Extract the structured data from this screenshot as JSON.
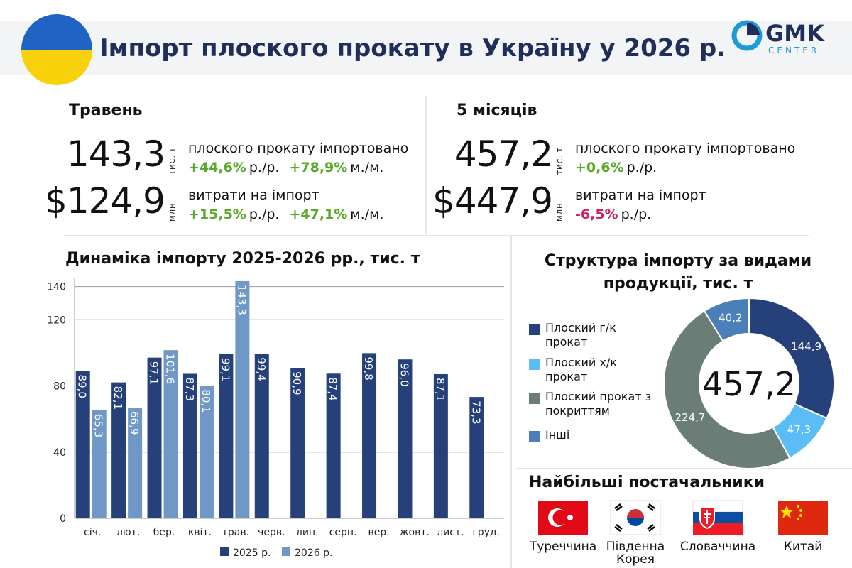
{
  "header": {
    "title": "Імпорт плоского прокату в Україну у 2026 р.",
    "logo_main": "GMK",
    "logo_sub": "CENTER"
  },
  "may": {
    "heading": "Травень",
    "rows": [
      {
        "value": "143,3",
        "unit": "тис. т",
        "desc": "плоского прокату імпортовано",
        "changes": [
          {
            "value": "+44,6%",
            "suffix": "р./р.",
            "color": "#5aa92b"
          },
          {
            "value": "+78,9%",
            "suffix": "м./м.",
            "color": "#5aa92b"
          }
        ]
      },
      {
        "value": "$124,9",
        "unit": "млн",
        "desc": "витрати на імпорт",
        "changes": [
          {
            "value": "+15,5%",
            "suffix": "р./р.",
            "color": "#5aa92b"
          },
          {
            "value": "+47,1%",
            "suffix": "м./м.",
            "color": "#5aa92b"
          }
        ]
      }
    ]
  },
  "five_months": {
    "heading": "5 місяців",
    "rows": [
      {
        "value": "457,2",
        "unit": "тис. т",
        "desc": "плоского прокату імпортовано",
        "changes": [
          {
            "value": "+0,6%",
            "suffix": "р./р.",
            "color": "#5aa92b"
          }
        ]
      },
      {
        "value": "$447,9",
        "unit": "млн",
        "desc": "витрати на імпорт",
        "changes": [
          {
            "value": "-6,5%",
            "suffix": "р./р.",
            "color": "#d3215a"
          }
        ]
      }
    ]
  },
  "chart_data": [
    {
      "type": "bar",
      "title": "Динаміка імпорту 2025-2026 рр., тис. т",
      "categories": [
        "січ.",
        "лют.",
        "бер.",
        "квіт.",
        "трав.",
        "черв.",
        "лип.",
        "серп.",
        "вер.",
        "жовт.",
        "лист.",
        "груд."
      ],
      "series": [
        {
          "name": "2025 р.",
          "color": "#26407a",
          "values": [
            89.0,
            82.1,
            97.1,
            87.3,
            99.1,
            99.4,
            90.9,
            87.4,
            99.8,
            96.0,
            87.1,
            73.3
          ],
          "value_labels": [
            "89,0",
            "82,1",
            "97,1",
            "87,3",
            "99,1",
            "99,4",
            "90,9",
            "87,4",
            "99,8",
            "96,0",
            "87,1",
            "73,3"
          ]
        },
        {
          "name": "2026 р.",
          "color": "#6f98c6",
          "values": [
            65.3,
            66.9,
            101.6,
            80.1,
            143.3,
            null,
            null,
            null,
            null,
            null,
            null,
            null
          ],
          "value_labels": [
            "65,3",
            "66,9",
            "101,6",
            "80,1",
            "143,3",
            null,
            null,
            null,
            null,
            null,
            null,
            null
          ]
        }
      ],
      "ylim": [
        0,
        145
      ],
      "yticks": [
        0,
        40,
        80,
        120,
        140
      ],
      "grid": true
    },
    {
      "type": "donut",
      "title": "Структура імпорту за видами продукції, тис. т",
      "categories": [
        "Плоский г/к прокат",
        "Плоский х/к прокат",
        "Плоский прокат з покриттям",
        "Інші"
      ],
      "values": [
        144.9,
        47.3,
        224.7,
        40.2
      ],
      "value_labels": [
        "144,9",
        "47,3",
        "224,7",
        "40,2"
      ],
      "colors": [
        "#26407a",
        "#5bbdf5",
        "#6a7e77",
        "#4a7fb8"
      ],
      "center_label": "457,2"
    }
  ],
  "suppliers": {
    "heading": "Найбільші постачальники",
    "countries": [
      "Туреччина",
      "Південна Корея",
      "Словаччина",
      "Китай"
    ]
  }
}
